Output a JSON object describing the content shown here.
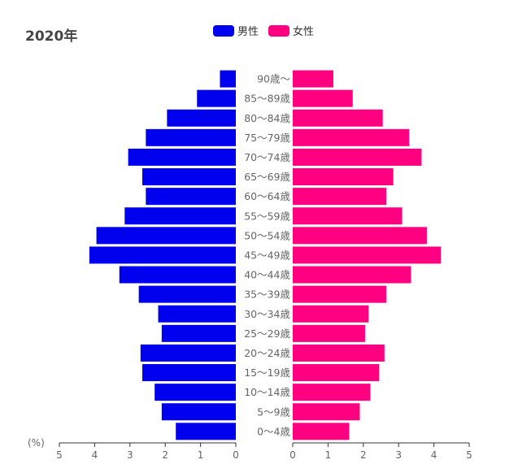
{
  "title": "2020年",
  "unit_label": "(%)",
  "colors": {
    "male": "#0000ee",
    "female": "#ff0080"
  },
  "chart_data": {
    "type": "bar",
    "orientation": "horizontal-pyramid",
    "categories": [
      "90歳～",
      "85～89歳",
      "80～84歳",
      "75～79歳",
      "70～74歳",
      "65～69歳",
      "60～64歳",
      "55～59歳",
      "50～54歳",
      "45～49歳",
      "40～44歳",
      "35～39歳",
      "30～34歳",
      "25～29歳",
      "20～24歳",
      "15～19歳",
      "10～14歳",
      "5～9歳",
      "0～4歳"
    ],
    "series": [
      {
        "name": "男性",
        "values": [
          0.45,
          1.1,
          1.95,
          2.55,
          3.05,
          2.65,
          2.55,
          3.15,
          3.95,
          4.15,
          3.3,
          2.75,
          2.2,
          2.1,
          2.7,
          2.65,
          2.3,
          2.1,
          1.7
        ]
      },
      {
        "name": "女性",
        "values": [
          1.15,
          1.7,
          2.55,
          3.3,
          3.65,
          2.85,
          2.65,
          3.1,
          3.8,
          4.2,
          3.35,
          2.65,
          2.15,
          2.05,
          2.6,
          2.45,
          2.2,
          1.9,
          1.6
        ]
      }
    ],
    "xlim": [
      0,
      5
    ],
    "ticks": [
      "5",
      "4",
      "3",
      "2",
      "1",
      "0"
    ],
    "ticks_right": [
      "0",
      "1",
      "2",
      "3",
      "4",
      "5"
    ],
    "legend_position": "top-center"
  }
}
